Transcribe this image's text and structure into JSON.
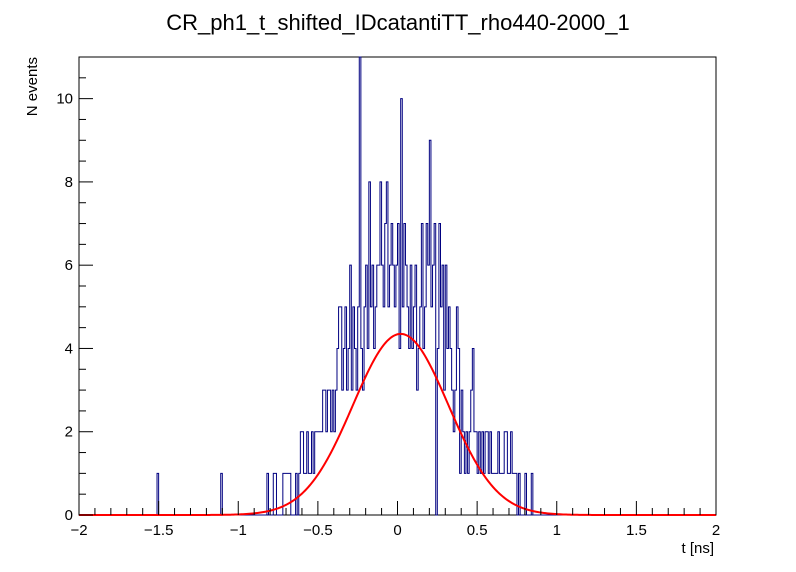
{
  "chart_data": {
    "type": "histogram",
    "title": "CR_ph1_t_shifted_IDcatantiTT_rho440-2000_1",
    "xlabel": "t [ns]",
    "ylabel": "N events",
    "xlim": [
      -2,
      2
    ],
    "ylim": [
      0,
      11
    ],
    "x_ticks": [
      "−2",
      "−1.5",
      "−1",
      "−0.5",
      "0",
      "0.5",
      "1",
      "1.5",
      "2"
    ],
    "y_ticks": [
      "0",
      "2",
      "4",
      "6",
      "8",
      "10"
    ],
    "grid": false,
    "bin_width": 0.01,
    "histogram": {
      "color": "#000080",
      "bins": [
        [
          -1.51,
          1
        ],
        [
          -1.11,
          1
        ],
        [
          -0.82,
          1
        ],
        [
          -0.78,
          1
        ],
        [
          -0.77,
          1
        ],
        [
          -0.72,
          1
        ],
        [
          -0.71,
          1
        ],
        [
          -0.7,
          1
        ],
        [
          -0.69,
          1
        ],
        [
          -0.68,
          1
        ],
        [
          -0.64,
          1
        ],
        [
          -0.62,
          1
        ],
        [
          -0.61,
          2
        ],
        [
          -0.6,
          2
        ],
        [
          -0.59,
          1
        ],
        [
          -0.58,
          1
        ],
        [
          -0.57,
          2
        ],
        [
          -0.56,
          1
        ],
        [
          -0.55,
          1
        ],
        [
          -0.54,
          2
        ],
        [
          -0.53,
          1
        ],
        [
          -0.52,
          2
        ],
        [
          -0.51,
          2
        ],
        [
          -0.5,
          2
        ],
        [
          -0.49,
          2
        ],
        [
          -0.48,
          2
        ],
        [
          -0.47,
          3
        ],
        [
          -0.46,
          3
        ],
        [
          -0.45,
          2
        ],
        [
          -0.44,
          3
        ],
        [
          -0.43,
          3
        ],
        [
          -0.42,
          2
        ],
        [
          -0.41,
          3
        ],
        [
          -0.4,
          2
        ],
        [
          -0.39,
          3
        ],
        [
          -0.38,
          4
        ],
        [
          -0.37,
          5
        ],
        [
          -0.36,
          5
        ],
        [
          -0.35,
          3
        ],
        [
          -0.34,
          4
        ],
        [
          -0.33,
          5
        ],
        [
          -0.32,
          3
        ],
        [
          -0.31,
          4
        ],
        [
          -0.3,
          6
        ],
        [
          -0.29,
          3
        ],
        [
          -0.28,
          5
        ],
        [
          -0.27,
          4
        ],
        [
          -0.26,
          3
        ],
        [
          -0.25,
          5
        ],
        [
          -0.24,
          11
        ],
        [
          -0.23,
          4
        ],
        [
          -0.22,
          3
        ],
        [
          -0.21,
          5
        ],
        [
          -0.2,
          6
        ],
        [
          -0.19,
          4
        ],
        [
          -0.18,
          8
        ],
        [
          -0.17,
          5
        ],
        [
          -0.16,
          6
        ],
        [
          -0.15,
          4
        ],
        [
          -0.14,
          5
        ],
        [
          -0.13,
          6
        ],
        [
          -0.12,
          6
        ],
        [
          -0.11,
          8
        ],
        [
          -0.1,
          6
        ],
        [
          -0.09,
          5
        ],
        [
          -0.08,
          7
        ],
        [
          -0.07,
          8
        ],
        [
          -0.06,
          5
        ],
        [
          -0.05,
          6
        ],
        [
          -0.04,
          7
        ],
        [
          -0.03,
          6
        ],
        [
          -0.02,
          5
        ],
        [
          -0.01,
          6
        ],
        [
          0.0,
          7
        ],
        [
          0.01,
          4
        ],
        [
          0.02,
          10
        ],
        [
          0.03,
          5
        ],
        [
          0.04,
          7
        ],
        [
          0.05,
          6
        ],
        [
          0.06,
          5
        ],
        [
          0.07,
          4
        ],
        [
          0.08,
          6
        ],
        [
          0.09,
          4
        ],
        [
          0.1,
          5
        ],
        [
          0.11,
          6
        ],
        [
          0.12,
          3
        ],
        [
          0.13,
          4
        ],
        [
          0.14,
          5
        ],
        [
          0.15,
          7
        ],
        [
          0.16,
          4
        ],
        [
          0.17,
          5
        ],
        [
          0.18,
          7
        ],
        [
          0.19,
          6
        ],
        [
          0.2,
          9
        ],
        [
          0.21,
          5
        ],
        [
          0.22,
          6
        ],
        [
          0.23,
          7
        ],
        [
          0.24,
          0
        ],
        [
          0.25,
          4
        ],
        [
          0.26,
          7
        ],
        [
          0.27,
          5
        ],
        [
          0.28,
          6
        ],
        [
          0.29,
          3
        ],
        [
          0.3,
          6
        ],
        [
          0.31,
          4
        ],
        [
          0.32,
          5
        ],
        [
          0.33,
          4
        ],
        [
          0.34,
          3
        ],
        [
          0.35,
          2
        ],
        [
          0.36,
          3
        ],
        [
          0.37,
          5
        ],
        [
          0.38,
          4
        ],
        [
          0.39,
          1
        ],
        [
          0.4,
          3
        ],
        [
          0.41,
          2
        ],
        [
          0.42,
          1
        ],
        [
          0.43,
          2
        ],
        [
          0.44,
          1
        ],
        [
          0.45,
          2
        ],
        [
          0.46,
          3
        ],
        [
          0.47,
          4
        ],
        [
          0.48,
          2
        ],
        [
          0.49,
          2
        ],
        [
          0.5,
          1
        ],
        [
          0.51,
          2
        ],
        [
          0.52,
          1
        ],
        [
          0.53,
          2
        ],
        [
          0.54,
          1
        ],
        [
          0.55,
          2
        ],
        [
          0.56,
          2
        ],
        [
          0.57,
          1
        ],
        [
          0.58,
          2
        ],
        [
          0.59,
          1
        ],
        [
          0.6,
          1
        ],
        [
          0.61,
          1
        ],
        [
          0.62,
          1
        ],
        [
          0.63,
          2
        ],
        [
          0.64,
          1
        ],
        [
          0.65,
          1
        ],
        [
          0.66,
          1
        ],
        [
          0.67,
          2
        ],
        [
          0.68,
          2
        ],
        [
          0.69,
          1
        ],
        [
          0.7,
          1
        ],
        [
          0.71,
          2
        ],
        [
          0.72,
          1
        ],
        [
          0.73,
          1
        ],
        [
          0.74,
          1
        ],
        [
          0.76,
          1
        ],
        [
          0.8,
          1
        ],
        [
          0.84,
          1
        ]
      ]
    },
    "fit": {
      "type": "gaussian",
      "color": "#ff0000",
      "amplitude": 4.35,
      "mean": 0.02,
      "sigma": 0.3,
      "range": [
        -2,
        2
      ]
    }
  }
}
